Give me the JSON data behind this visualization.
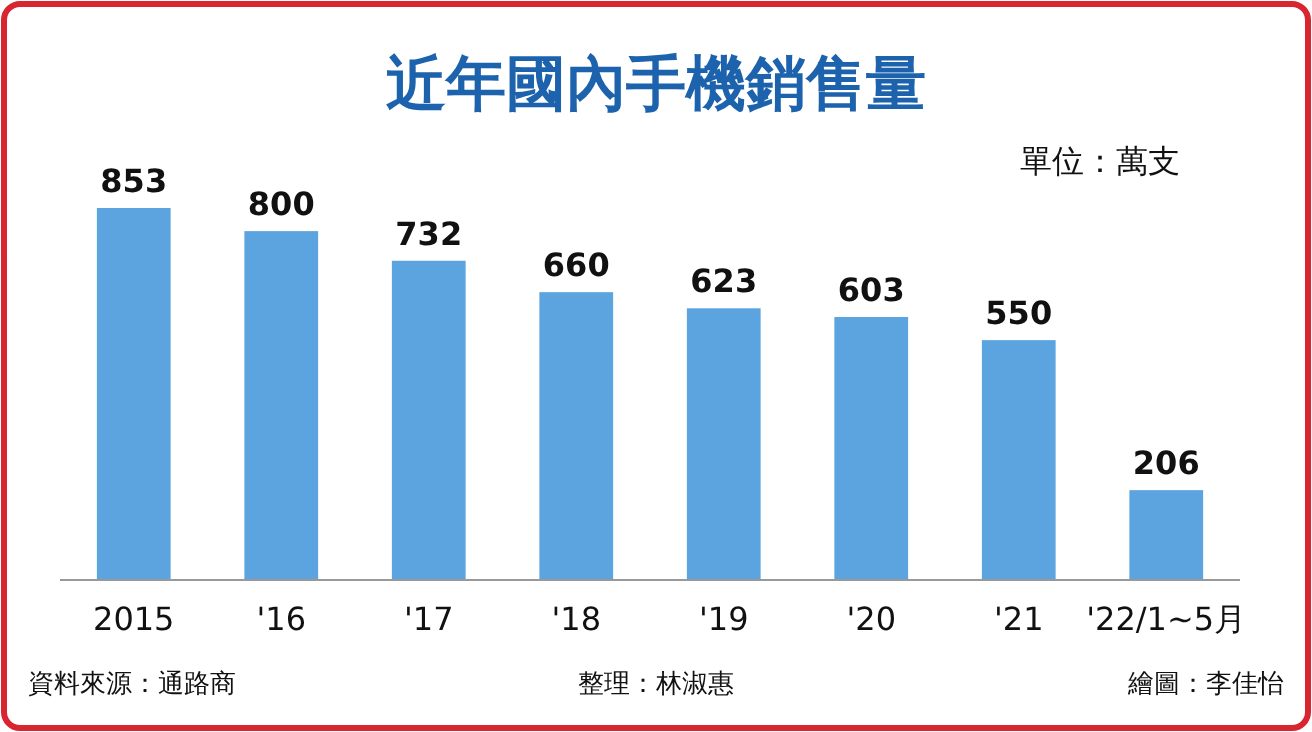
{
  "chart_data": {
    "type": "bar",
    "title": "近年國內手機銷售量",
    "subtitle": "單位：萬支",
    "categories": [
      "2015",
      "'16",
      "'17",
      "'18",
      "'19",
      "'20",
      "'21",
      "'22/1~5月"
    ],
    "values": [
      853,
      800,
      732,
      660,
      623,
      603,
      550,
      206
    ],
    "color": "#5ba4e0",
    "data_labels": true,
    "annotations": [
      "資料來源：通路商",
      "整理：林淑惠",
      "繪圖：李佳怡"
    ]
  }
}
